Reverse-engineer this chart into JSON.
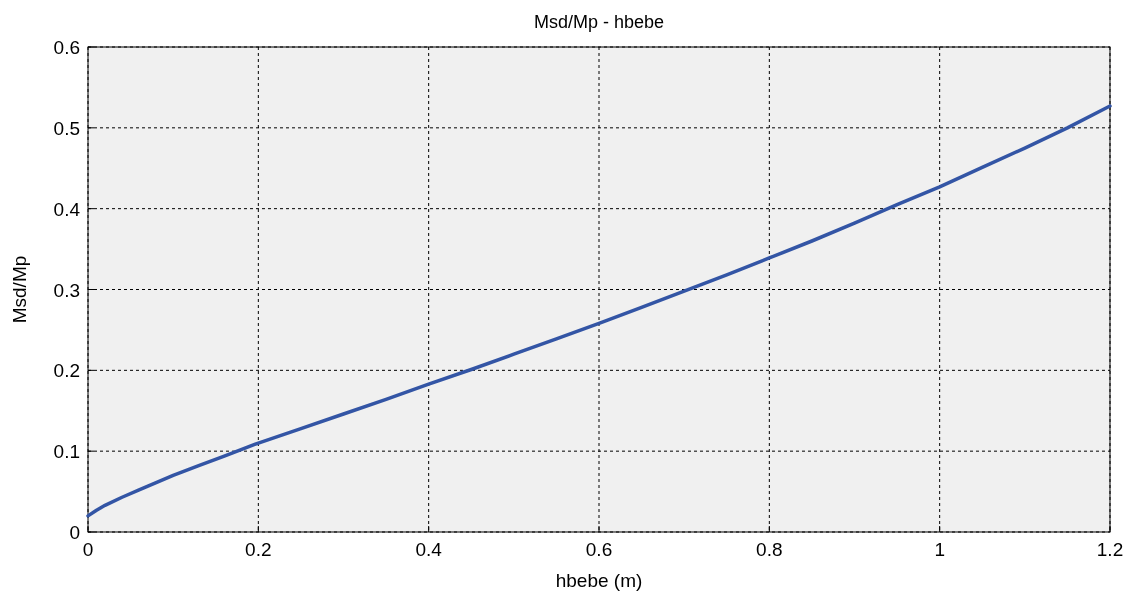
{
  "chart_data": {
    "type": "line",
    "title": "Msd/Mp - hbebe",
    "xlabel": "hbebe (m)",
    "ylabel": "Msd/Mp",
    "x": [
      0,
      0.01,
      0.02,
      0.04,
      0.06,
      0.08,
      0.1,
      0.13,
      0.16,
      0.2,
      0.25,
      0.3,
      0.35,
      0.4,
      0.45,
      0.5,
      0.55,
      0.6,
      0.65,
      0.7,
      0.75,
      0.8,
      0.85,
      0.9,
      0.95,
      1.0,
      1.05,
      1.1,
      1.15,
      1.2
    ],
    "series": [
      {
        "color": "#3355a5",
        "values": [
          0.02,
          0.027,
          0.033,
          0.043,
          0.052,
          0.061,
          0.07,
          0.082,
          0.094,
          0.11,
          0.128,
          0.146,
          0.164,
          0.183,
          0.201,
          0.22,
          0.239,
          0.258,
          0.278,
          0.298,
          0.318,
          0.339,
          0.36,
          0.382,
          0.405,
          0.427,
          0.451,
          0.475,
          0.5,
          0.527
        ]
      }
    ],
    "xlim": [
      0,
      1.2
    ],
    "xticks": [
      0,
      0.2,
      0.4,
      0.6,
      0.8,
      1,
      1.2
    ],
    "ylim": [
      0,
      0.6
    ],
    "yticks": [
      0,
      0.1,
      0.2,
      0.3,
      0.4,
      0.5,
      0.6
    ],
    "grid": true,
    "line_style": "solid",
    "marker": "none"
  }
}
